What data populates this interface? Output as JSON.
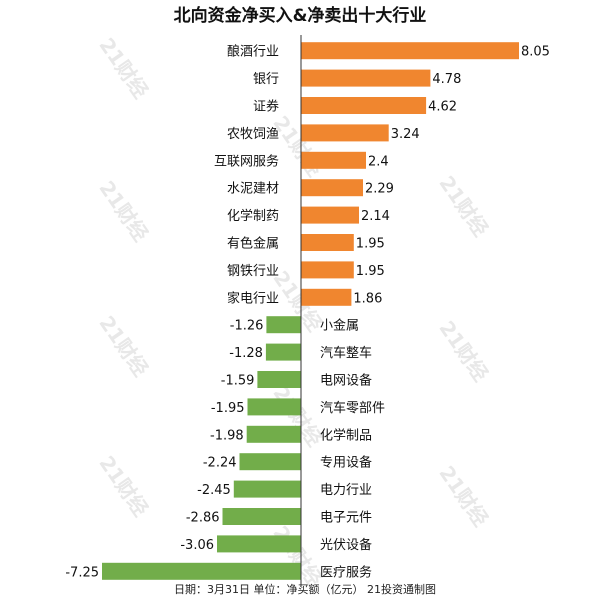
{
  "colors": {
    "positive": "#f0862f",
    "negative": "#72ad4a",
    "axis": "#333333",
    "watermark": "#d9d9d9"
  },
  "watermark_text": "21财经",
  "footer": "日期：3月31日 单位：净买额（亿元） 21投资通制图",
  "chart_data": {
    "type": "bar",
    "orientation": "horizontal",
    "title": "北向资金净买入&净卖出十大行业",
    "unit": "亿元",
    "xlim": [
      -7.25,
      8.05
    ],
    "grid": false,
    "categories": [
      "酿酒行业",
      "银行",
      "证券",
      "农牧饲渔",
      "互联网服务",
      "水泥建材",
      "化学制药",
      "有色金属",
      "钢铁行业",
      "家电行业",
      "小金属",
      "汽车整车",
      "电网设备",
      "汽车零部件",
      "化学制品",
      "专用设备",
      "电力行业",
      "电子元件",
      "光伏设备",
      "医疗服务"
    ],
    "values": [
      8.05,
      4.78,
      4.62,
      3.24,
      2.4,
      2.29,
      2.14,
      1.95,
      1.95,
      1.86,
      -1.26,
      -1.28,
      -1.59,
      -1.95,
      -1.98,
      -2.24,
      -2.45,
      -2.86,
      -3.06,
      -7.25
    ],
    "value_labels": [
      "8.05",
      "4.78",
      "4.62",
      "3.24",
      "2.4",
      "2.29",
      "2.14",
      "1.95",
      "1.95",
      "1.86",
      "-1.26",
      "-1.28",
      "-1.59",
      "-1.95",
      "-1.98",
      "-2.24",
      "-2.45",
      "-2.86",
      "-3.06",
      "-7.25"
    ]
  }
}
